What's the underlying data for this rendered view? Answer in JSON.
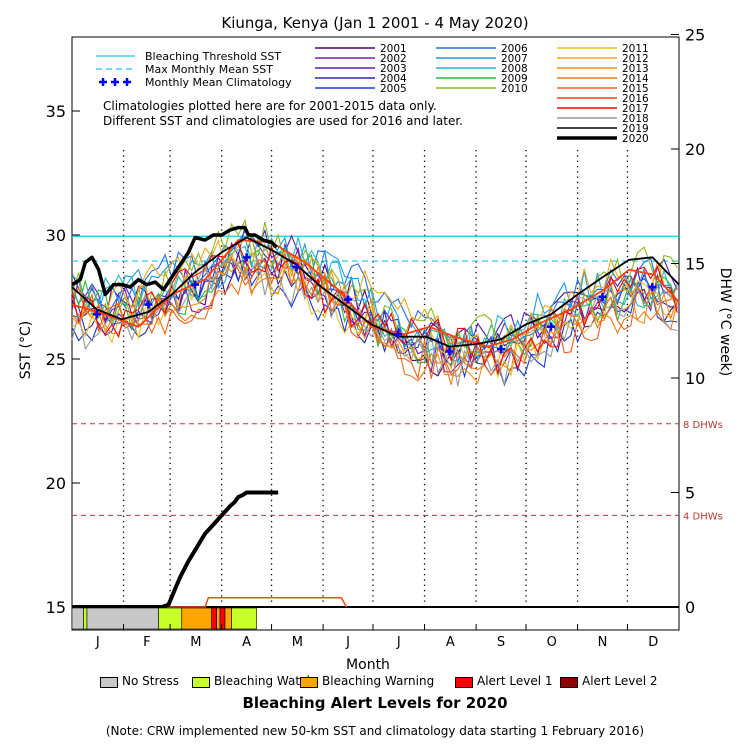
{
  "chart_data": {
    "type": "line",
    "title": "Kiunga, Kenya      (Jan 1 2001 - 4 May 2020)",
    "xlabel": "Month",
    "ylabel_left": "SST (°C)",
    "ylabel_right": "DHW (°C week)",
    "months": [
      "J",
      "F",
      "M",
      "A",
      "M",
      "J",
      "J",
      "A",
      "S",
      "O",
      "N",
      "D"
    ],
    "ylim_left": [
      14,
      38.5
    ],
    "yticks_left": [
      15,
      20,
      25,
      30,
      35
    ],
    "ylim_right": [
      0,
      25
    ],
    "yticks_right": [
      0,
      5,
      10,
      15,
      20,
      25
    ],
    "bleaching_threshold_sst": 29.95,
    "max_monthly_mean_sst": 28.95,
    "dhw_thresholds": [
      {
        "label": "8 DHWs",
        "value": 8
      },
      {
        "label": "4 DHWs",
        "value": 4
      }
    ],
    "reference_legend": [
      {
        "name": "Bleaching Threshold SST",
        "color": "#22c3ee"
      },
      {
        "name": "Max Monthly Mean SST",
        "color": "#22c3ee"
      },
      {
        "name": "Monthly Mean Climatology",
        "color": "#0000ff"
      }
    ],
    "notes": [
      "Climatologies plotted here are for 2001-2015 data only.",
      "Different SST and climatologies are used for 2016 and later."
    ],
    "climatology_day": [
      15,
      46,
      74,
      105,
      135,
      166,
      196,
      227,
      258,
      288,
      319,
      349
    ],
    "climatology_sst": [
      26.8,
      27.2,
      28.0,
      29.1,
      28.7,
      27.4,
      26.0,
      25.3,
      25.4,
      26.3,
      27.5,
      27.9
    ],
    "years": [
      {
        "name": "2001",
        "color": "#4b0082"
      },
      {
        "name": "2002",
        "color": "#7a1fa2"
      },
      {
        "name": "2003",
        "color": "#5c1ab8"
      },
      {
        "name": "2004",
        "color": "#2a2ab0"
      },
      {
        "name": "2005",
        "color": "#1a3ad8"
      },
      {
        "name": "2006",
        "color": "#1e6fe6"
      },
      {
        "name": "2007",
        "color": "#1c9be8"
      },
      {
        "name": "2008",
        "color": "#21b8c8"
      },
      {
        "name": "2009",
        "color": "#2ab84a"
      },
      {
        "name": "2010",
        "color": "#8ab820"
      },
      {
        "name": "2011",
        "color": "#f0c020"
      },
      {
        "name": "2012",
        "color": "#f0a818"
      },
      {
        "name": "2013",
        "color": "#f09018"
      },
      {
        "name": "2014",
        "color": "#f07818"
      },
      {
        "name": "2015",
        "color": "#f06018"
      },
      {
        "name": "2016",
        "color": "#ff4010"
      },
      {
        "name": "2017",
        "color": "#ff0000"
      },
      {
        "name": "2018",
        "color": "#999999"
      },
      {
        "name": "2019",
        "color": "#000000"
      },
      {
        "name": "2020",
        "color": "#000000"
      }
    ],
    "sst_2019": [
      [
        0,
        27.9
      ],
      [
        15,
        27.0
      ],
      [
        30,
        26.6
      ],
      [
        46,
        26.9
      ],
      [
        60,
        27.6
      ],
      [
        74,
        28.5
      ],
      [
        90,
        29.3
      ],
      [
        105,
        29.9
      ],
      [
        120,
        29.4
      ],
      [
        135,
        28.8
      ],
      [
        150,
        27.9
      ],
      [
        166,
        27.1
      ],
      [
        180,
        26.4
      ],
      [
        196,
        25.9
      ],
      [
        213,
        25.9
      ],
      [
        227,
        25.5
      ],
      [
        243,
        25.6
      ],
      [
        258,
        25.8
      ],
      [
        273,
        26.4
      ],
      [
        288,
        26.8
      ],
      [
        304,
        27.6
      ],
      [
        319,
        28.3
      ],
      [
        335,
        29.0
      ],
      [
        349,
        29.1
      ],
      [
        365,
        28.0
      ]
    ],
    "sst_2016": [
      [
        0,
        27.2
      ],
      [
        20,
        26.8
      ],
      [
        40,
        26.3
      ],
      [
        60,
        27.6
      ],
      [
        80,
        28.2
      ],
      [
        100,
        29.8
      ],
      [
        120,
        29.7
      ],
      [
        140,
        28.9
      ],
      [
        160,
        27.8
      ],
      [
        180,
        26.3
      ],
      [
        200,
        26.0
      ],
      [
        215,
        26.3
      ],
      [
        230,
        25.9
      ],
      [
        250,
        25.5
      ],
      [
        265,
        25.8
      ],
      [
        280,
        26.4
      ],
      [
        300,
        27.0
      ],
      [
        320,
        27.8
      ],
      [
        335,
        28.6
      ],
      [
        350,
        28.4
      ],
      [
        365,
        27.3
      ]
    ],
    "sst_2020": [
      [
        0,
        28.0
      ],
      [
        5,
        28.2
      ],
      [
        8,
        28.9
      ],
      [
        12,
        29.1
      ],
      [
        16,
        28.6
      ],
      [
        20,
        27.6
      ],
      [
        25,
        28.0
      ],
      [
        30,
        28.0
      ],
      [
        35,
        27.9
      ],
      [
        40,
        28.2
      ],
      [
        45,
        28.0
      ],
      [
        50,
        28.1
      ],
      [
        55,
        27.8
      ],
      [
        60,
        28.3
      ],
      [
        65,
        28.8
      ],
      [
        70,
        29.3
      ],
      [
        74,
        29.9
      ],
      [
        80,
        29.8
      ],
      [
        85,
        30.0
      ],
      [
        90,
        30.0
      ],
      [
        95,
        30.2
      ],
      [
        100,
        30.3
      ],
      [
        104,
        30.3
      ],
      [
        106,
        30.0
      ],
      [
        110,
        30.0
      ],
      [
        115,
        29.8
      ],
      [
        120,
        29.7
      ],
      [
        123,
        29.5
      ]
    ],
    "dhw_2020": [
      [
        0,
        0
      ],
      [
        54,
        0
      ],
      [
        58,
        0.1
      ],
      [
        65,
        1.3
      ],
      [
        70,
        2.0
      ],
      [
        75,
        2.6
      ],
      [
        80,
        3.2
      ],
      [
        85,
        3.6
      ],
      [
        90,
        4.0
      ],
      [
        95,
        4.4
      ],
      [
        98,
        4.6
      ],
      [
        100,
        4.8
      ],
      [
        103,
        4.9
      ],
      [
        105,
        5.0
      ],
      [
        124,
        5.0
      ]
    ],
    "dhw_2016": [
      [
        0,
        0
      ],
      [
        80,
        0
      ],
      [
        82,
        0.4
      ],
      [
        162,
        0.4
      ],
      [
        165,
        0
      ]
    ],
    "alert_title": "Bleaching Alert Levels for 2020",
    "alert_legend": [
      {
        "name": "No Stress",
        "color": "#c8c8c8"
      },
      {
        "name": "Bleaching Watch",
        "color": "#c8ff2a"
      },
      {
        "name": "Bleaching Warning",
        "color": "#ffa500"
      },
      {
        "name": "Alert Level 1",
        "color": "#ff0000"
      },
      {
        "name": "Alert Level 2",
        "color": "#8b0000"
      }
    ],
    "alert_2020": [
      {
        "start": 0,
        "end": 7,
        "level": 0
      },
      {
        "start": 7,
        "end": 9,
        "level": 1
      },
      {
        "start": 9,
        "end": 52,
        "level": 0
      },
      {
        "start": 52,
        "end": 66,
        "level": 1
      },
      {
        "start": 66,
        "end": 84,
        "level": 2
      },
      {
        "start": 84,
        "end": 87,
        "level": 3
      },
      {
        "start": 87,
        "end": 89,
        "level": 2
      },
      {
        "start": 89,
        "end": 92,
        "level": 3
      },
      {
        "start": 92,
        "end": 96,
        "level": 2
      },
      {
        "start": 96,
        "end": 111,
        "level": 1
      }
    ],
    "footnote": "(Note: CRW implemented new 50-km SST and climatology data starting 1 February 2016)"
  }
}
